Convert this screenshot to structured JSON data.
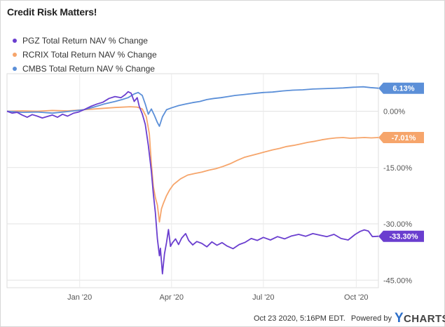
{
  "title": "Credit Risk Matters!",
  "footer": {
    "timestamp": "Oct 23 2020, 5:16PM EDT.",
    "powered_by": "Powered by",
    "brand_y": "Y",
    "brand_rest": "CHARTS",
    "brand_logo": "ycharts-logo"
  },
  "chart_data": {
    "type": "line",
    "y_axis": {
      "min": -47,
      "max": 10,
      "ticks": [
        0,
        -15,
        -30,
        -45
      ],
      "tick_labels": [
        "0.00%",
        "-15.00%",
        "-30.00%",
        "-45.00%"
      ],
      "position": "right"
    },
    "x_axis": {
      "start": "2019-10-21",
      "end": "2020-10-23",
      "ticks": [
        "2020-01-01",
        "2020-04-01",
        "2020-07-01",
        "2020-10-01"
      ],
      "tick_labels": [
        "Jan '20",
        "Apr '20",
        "Jul '20",
        "Oct '20"
      ]
    },
    "grid": "horizontal",
    "legend_placement": "top-left",
    "series": [
      {
        "name": "PGZ Total Return NAV % Change",
        "color": "#6a3ecf",
        "end_label": "-33.30%",
        "points": [
          [
            "2019-10-21",
            0.0
          ],
          [
            "2019-10-26",
            -0.5
          ],
          [
            "2019-10-31",
            -0.3
          ],
          [
            "2019-11-05",
            -1.0
          ],
          [
            "2019-11-10",
            -1.6
          ],
          [
            "2019-11-15",
            -0.9
          ],
          [
            "2019-11-20",
            -1.3
          ],
          [
            "2019-11-25",
            -1.8
          ],
          [
            "2019-11-30",
            -1.4
          ],
          [
            "2019-12-05",
            -1.0
          ],
          [
            "2019-12-10",
            -1.6
          ],
          [
            "2019-12-15",
            -0.8
          ],
          [
            "2019-12-20",
            -1.3
          ],
          [
            "2019-12-26",
            -0.5
          ],
          [
            "2019-12-31",
            -0.2
          ],
          [
            "2020-01-06",
            0.5
          ],
          [
            "2020-01-12",
            1.3
          ],
          [
            "2020-01-18",
            1.9
          ],
          [
            "2020-01-24",
            2.4
          ],
          [
            "2020-01-30",
            3.4
          ],
          [
            "2020-02-05",
            3.9
          ],
          [
            "2020-02-11",
            3.6
          ],
          [
            "2020-02-15",
            4.4
          ],
          [
            "2020-02-18",
            5.2
          ],
          [
            "2020-02-21",
            4.8
          ],
          [
            "2020-02-24",
            2.6
          ],
          [
            "2020-02-27",
            3.6
          ],
          [
            "2020-02-29",
            1.3
          ],
          [
            "2020-03-03",
            -0.7
          ],
          [
            "2020-03-06",
            -3.5
          ],
          [
            "2020-03-09",
            -9.0
          ],
          [
            "2020-03-12",
            -16.0
          ],
          [
            "2020-03-14",
            -22.0
          ],
          [
            "2020-03-16",
            -27.0
          ],
          [
            "2020-03-18",
            -34.0
          ],
          [
            "2020-03-20",
            -38.5
          ],
          [
            "2020-03-21",
            -36.5
          ],
          [
            "2020-03-23",
            -43.3
          ],
          [
            "2020-03-25",
            -38.0
          ],
          [
            "2020-03-27",
            -35.0
          ],
          [
            "2020-03-29",
            -31.5
          ],
          [
            "2020-03-31",
            -36.0
          ],
          [
            "2020-04-02",
            -35.0
          ],
          [
            "2020-04-05",
            -34.0
          ],
          [
            "2020-04-08",
            -35.5
          ],
          [
            "2020-04-11",
            -33.8
          ],
          [
            "2020-04-15",
            -32.6
          ],
          [
            "2020-04-18",
            -34.4
          ],
          [
            "2020-04-22",
            -35.6
          ],
          [
            "2020-04-26",
            -34.7
          ],
          [
            "2020-05-01",
            -35.2
          ],
          [
            "2020-05-06",
            -36.1
          ],
          [
            "2020-05-11",
            -34.8
          ],
          [
            "2020-05-16",
            -35.7
          ],
          [
            "2020-05-21",
            -35.0
          ],
          [
            "2020-05-26",
            -35.9
          ],
          [
            "2020-06-01",
            -36.6
          ],
          [
            "2020-06-07",
            -35.5
          ],
          [
            "2020-06-13",
            -34.9
          ],
          [
            "2020-06-19",
            -33.9
          ],
          [
            "2020-06-25",
            -34.4
          ],
          [
            "2020-07-01",
            -33.6
          ],
          [
            "2020-07-08",
            -34.3
          ],
          [
            "2020-07-15",
            -33.4
          ],
          [
            "2020-07-22",
            -34.0
          ],
          [
            "2020-07-29",
            -33.2
          ],
          [
            "2020-08-05",
            -32.8
          ],
          [
            "2020-08-12",
            -33.3
          ],
          [
            "2020-08-19",
            -32.6
          ],
          [
            "2020-08-26",
            -33.0
          ],
          [
            "2020-09-02",
            -33.4
          ],
          [
            "2020-09-09",
            -32.8
          ],
          [
            "2020-09-16",
            -33.9
          ],
          [
            "2020-09-23",
            -34.3
          ],
          [
            "2020-09-30",
            -32.8
          ],
          [
            "2020-10-05",
            -32.0
          ],
          [
            "2020-10-09",
            -31.6
          ],
          [
            "2020-10-13",
            -31.9
          ],
          [
            "2020-10-17",
            -33.4
          ],
          [
            "2020-10-23",
            -33.3
          ]
        ]
      },
      {
        "name": "RCRIX Total Return NAV % Change",
        "color": "#f6a56b",
        "end_label": "-7.01%",
        "points": [
          [
            "2019-10-21",
            0.0
          ],
          [
            "2019-11-05",
            0.1
          ],
          [
            "2019-11-20",
            0.0
          ],
          [
            "2019-12-05",
            0.2
          ],
          [
            "2019-12-20",
            0.1
          ],
          [
            "2020-01-05",
            0.4
          ],
          [
            "2020-01-20",
            0.7
          ],
          [
            "2020-02-05",
            1.0
          ],
          [
            "2020-02-20",
            1.2
          ],
          [
            "2020-02-27",
            1.1
          ],
          [
            "2020-03-03",
            0.6
          ],
          [
            "2020-03-07",
            -1.5
          ],
          [
            "2020-03-10",
            -6.0
          ],
          [
            "2020-03-12",
            -14.0
          ],
          [
            "2020-03-14",
            -20.0
          ],
          [
            "2020-03-16",
            -23.0
          ],
          [
            "2020-03-18",
            -25.0
          ],
          [
            "2020-03-20",
            -29.5
          ],
          [
            "2020-03-22",
            -26.0
          ],
          [
            "2020-03-24",
            -24.5
          ],
          [
            "2020-03-27",
            -22.5
          ],
          [
            "2020-03-30",
            -21.0
          ],
          [
            "2020-04-03",
            -19.5
          ],
          [
            "2020-04-10",
            -18.0
          ],
          [
            "2020-04-17",
            -17.0
          ],
          [
            "2020-04-24",
            -16.6
          ],
          [
            "2020-05-01",
            -16.2
          ],
          [
            "2020-05-08",
            -15.7
          ],
          [
            "2020-05-15",
            -15.3
          ],
          [
            "2020-05-22",
            -14.7
          ],
          [
            "2020-05-29",
            -14.0
          ],
          [
            "2020-06-05",
            -13.1
          ],
          [
            "2020-06-12",
            -12.3
          ],
          [
            "2020-06-19",
            -11.8
          ],
          [
            "2020-06-26",
            -11.3
          ],
          [
            "2020-07-03",
            -10.8
          ],
          [
            "2020-07-10",
            -10.3
          ],
          [
            "2020-07-17",
            -9.9
          ],
          [
            "2020-07-24",
            -9.4
          ],
          [
            "2020-07-31",
            -9.1
          ],
          [
            "2020-08-07",
            -8.7
          ],
          [
            "2020-08-14",
            -8.3
          ],
          [
            "2020-08-21",
            -8.0
          ],
          [
            "2020-08-28",
            -7.6
          ],
          [
            "2020-09-04",
            -7.3
          ],
          [
            "2020-09-11",
            -7.1
          ],
          [
            "2020-09-18",
            -7.0
          ],
          [
            "2020-09-25",
            -7.2
          ],
          [
            "2020-10-02",
            -7.1
          ],
          [
            "2020-10-09",
            -7.0
          ],
          [
            "2020-10-16",
            -7.1
          ],
          [
            "2020-10-23",
            -7.01
          ]
        ]
      },
      {
        "name": "CMBS Total Return NAV % Change",
        "color": "#5b8fd8",
        "end_label": "6.13%",
        "points": [
          [
            "2019-10-21",
            0.0
          ],
          [
            "2019-11-05",
            -0.3
          ],
          [
            "2019-11-20",
            -0.2
          ],
          [
            "2019-12-05",
            -0.5
          ],
          [
            "2019-12-20",
            -0.1
          ],
          [
            "2020-01-05",
            0.4
          ],
          [
            "2020-01-15",
            1.1
          ],
          [
            "2020-01-25",
            1.9
          ],
          [
            "2020-02-05",
            2.6
          ],
          [
            "2020-02-12",
            3.1
          ],
          [
            "2020-02-18",
            3.6
          ],
          [
            "2020-02-24",
            4.6
          ],
          [
            "2020-02-28",
            5.0
          ],
          [
            "2020-03-03",
            4.2
          ],
          [
            "2020-03-06",
            1.9
          ],
          [
            "2020-03-09",
            -0.8
          ],
          [
            "2020-03-12",
            0.6
          ],
          [
            "2020-03-15",
            -1.1
          ],
          [
            "2020-03-18",
            -3.0
          ],
          [
            "2020-03-20",
            -4.0
          ],
          [
            "2020-03-23",
            -1.5
          ],
          [
            "2020-03-27",
            0.4
          ],
          [
            "2020-04-01",
            0.9
          ],
          [
            "2020-04-08",
            1.5
          ],
          [
            "2020-04-15",
            1.9
          ],
          [
            "2020-04-22",
            2.3
          ],
          [
            "2020-04-29",
            2.6
          ],
          [
            "2020-05-06",
            3.1
          ],
          [
            "2020-05-13",
            3.4
          ],
          [
            "2020-05-20",
            3.6
          ],
          [
            "2020-05-27",
            3.9
          ],
          [
            "2020-06-03",
            4.2
          ],
          [
            "2020-06-10",
            4.4
          ],
          [
            "2020-06-17",
            4.6
          ],
          [
            "2020-06-24",
            4.8
          ],
          [
            "2020-07-01",
            5.0
          ],
          [
            "2020-07-10",
            5.1
          ],
          [
            "2020-07-20",
            5.4
          ],
          [
            "2020-07-30",
            5.6
          ],
          [
            "2020-08-09",
            5.7
          ],
          [
            "2020-08-19",
            5.9
          ],
          [
            "2020-08-29",
            6.0
          ],
          [
            "2020-09-08",
            6.1
          ],
          [
            "2020-09-18",
            6.2
          ],
          [
            "2020-09-28",
            6.4
          ],
          [
            "2020-10-08",
            6.5
          ],
          [
            "2020-10-15",
            6.3
          ],
          [
            "2020-10-23",
            6.13
          ]
        ]
      }
    ]
  }
}
